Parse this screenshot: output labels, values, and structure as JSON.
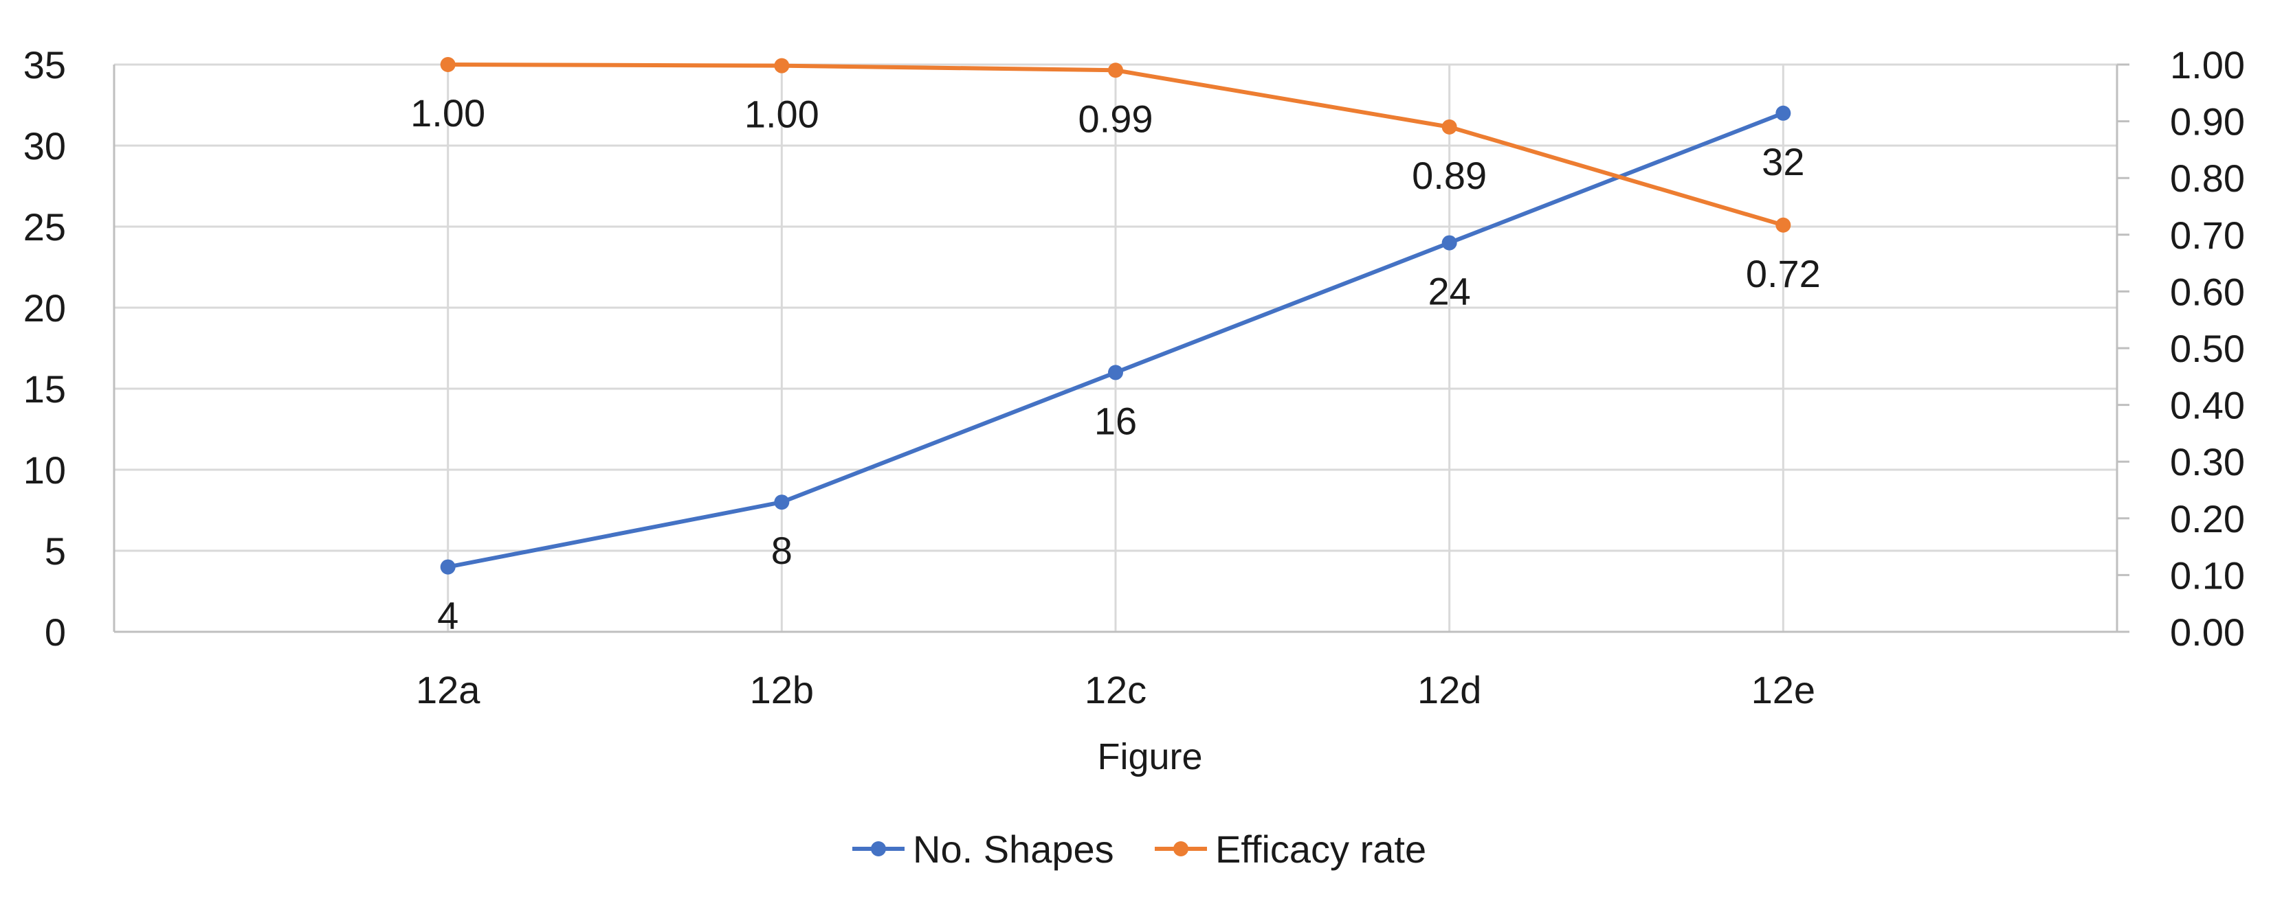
{
  "chart_data": {
    "type": "line",
    "title": "",
    "xlabel": "Figure",
    "ylabel": "",
    "ylabel_right": "",
    "categories": [
      "12a",
      "12b",
      "12c",
      "12d",
      "12e"
    ],
    "series": [
      {
        "name": "No. Shapes",
        "axis": "left",
        "color": "#4472c4",
        "values": [
          4,
          8,
          16,
          24,
          32
        ],
        "labels": [
          "4",
          "8",
          "16",
          "24",
          "32"
        ]
      },
      {
        "name": "Efficacy rate",
        "axis": "right",
        "color": "#ed7d31",
        "values": [
          1.0,
          0.998,
          0.99,
          0.89,
          0.717
        ],
        "labels": [
          "1.00",
          "1.00",
          "0.99",
          "0.89",
          "0.72"
        ]
      }
    ],
    "ylim": [
      0,
      35
    ],
    "yticks": [
      "0",
      "5",
      "10",
      "15",
      "20",
      "25",
      "30",
      "35"
    ],
    "ylim_right": [
      0,
      1.0
    ],
    "yticks_right": [
      "0.00",
      "0.10",
      "0.20",
      "0.30",
      "0.40",
      "0.50",
      "0.60",
      "0.70",
      "0.80",
      "0.90",
      "1.00"
    ],
    "grid": true,
    "legend_position": "bottom"
  }
}
